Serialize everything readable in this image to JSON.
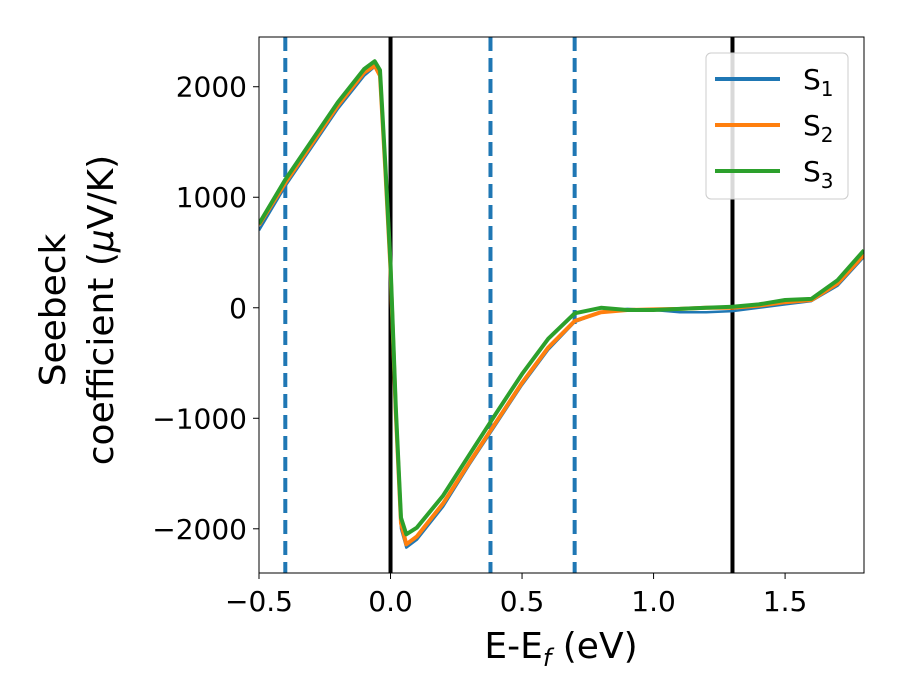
{
  "chart_data": {
    "type": "line",
    "xlabel": "E-E",
    "xlabel_sub": "f",
    "xlabel_unit": " (eV)",
    "ylabel_line1": "Seebeck",
    "ylabel_line2": "coefficient  (",
    "ylabel_mu": "μ",
    "ylabel_unit": "V/K)",
    "xlim": [
      -0.5,
      1.8
    ],
    "ylim": [
      -2400,
      2450
    ],
    "x_ticks": [
      -0.5,
      0.0,
      0.5,
      1.0,
      1.5
    ],
    "x_tick_labels": [
      "−0.5",
      "0.0",
      "0.5",
      "1.0",
      "1.5"
    ],
    "y_ticks": [
      -2000,
      -1000,
      0,
      1000,
      2000
    ],
    "y_tick_labels": [
      "−2000",
      "−1000",
      "0",
      "1000",
      "2000"
    ],
    "grid": false,
    "legend_position": "top-right",
    "vertical_lines": [
      {
        "x": -0.4,
        "style": "dashed",
        "color": "#1f77b4"
      },
      {
        "x": 0.0,
        "style": "solid",
        "color": "#000000"
      },
      {
        "x": 0.38,
        "style": "dashed",
        "color": "#1f77b4"
      },
      {
        "x": 0.7,
        "style": "dashed",
        "color": "#1f77b4"
      },
      {
        "x": 1.3,
        "style": "solid",
        "color": "#000000"
      }
    ],
    "series": [
      {
        "name": "S",
        "sub": "1",
        "color": "#1f77b4",
        "points": [
          [
            -0.5,
            700
          ],
          [
            -0.4,
            1100
          ],
          [
            -0.3,
            1450
          ],
          [
            -0.2,
            1800
          ],
          [
            -0.1,
            2100
          ],
          [
            -0.06,
            2180
          ],
          [
            -0.04,
            2100
          ],
          [
            -0.02,
            1200
          ],
          [
            0.0,
            300
          ],
          [
            0.02,
            -1000
          ],
          [
            0.04,
            -2000
          ],
          [
            0.06,
            -2170
          ],
          [
            0.1,
            -2100
          ],
          [
            0.2,
            -1800
          ],
          [
            0.3,
            -1420
          ],
          [
            0.4,
            -1060
          ],
          [
            0.5,
            -700
          ],
          [
            0.6,
            -380
          ],
          [
            0.7,
            -130
          ],
          [
            0.8,
            -40
          ],
          [
            0.9,
            -10
          ],
          [
            1.0,
            -20
          ],
          [
            1.1,
            -40
          ],
          [
            1.2,
            -40
          ],
          [
            1.3,
            -30
          ],
          [
            1.4,
            0
          ],
          [
            1.5,
            30
          ],
          [
            1.6,
            60
          ],
          [
            1.7,
            200
          ],
          [
            1.8,
            460
          ]
        ]
      },
      {
        "name": "S",
        "sub": "2",
        "color": "#ff7f0e",
        "points": [
          [
            -0.5,
            750
          ],
          [
            -0.4,
            1130
          ],
          [
            -0.3,
            1480
          ],
          [
            -0.2,
            1830
          ],
          [
            -0.1,
            2130
          ],
          [
            -0.06,
            2190
          ],
          [
            -0.04,
            2100
          ],
          [
            -0.02,
            1250
          ],
          [
            0.0,
            350
          ],
          [
            0.02,
            -950
          ],
          [
            0.04,
            -1950
          ],
          [
            0.06,
            -2140
          ],
          [
            0.1,
            -2070
          ],
          [
            0.2,
            -1770
          ],
          [
            0.3,
            -1400
          ],
          [
            0.4,
            -1040
          ],
          [
            0.5,
            -680
          ],
          [
            0.6,
            -360
          ],
          [
            0.7,
            -120
          ],
          [
            0.8,
            -40
          ],
          [
            0.9,
            -20
          ],
          [
            1.0,
            -15
          ],
          [
            1.1,
            -10
          ],
          [
            1.2,
            0
          ],
          [
            1.3,
            0
          ],
          [
            1.4,
            20
          ],
          [
            1.5,
            50
          ],
          [
            1.6,
            70
          ],
          [
            1.7,
            220
          ],
          [
            1.8,
            480
          ]
        ]
      },
      {
        "name": "S",
        "sub": "3",
        "color": "#2ca02c",
        "points": [
          [
            -0.5,
            760
          ],
          [
            -0.4,
            1160
          ],
          [
            -0.3,
            1510
          ],
          [
            -0.2,
            1860
          ],
          [
            -0.1,
            2160
          ],
          [
            -0.06,
            2230
          ],
          [
            -0.04,
            2150
          ],
          [
            -0.02,
            1300
          ],
          [
            0.0,
            400
          ],
          [
            0.02,
            -900
          ],
          [
            0.04,
            -1900
          ],
          [
            0.06,
            -2050
          ],
          [
            0.1,
            -1990
          ],
          [
            0.2,
            -1700
          ],
          [
            0.3,
            -1330
          ],
          [
            0.4,
            -960
          ],
          [
            0.5,
            -600
          ],
          [
            0.6,
            -280
          ],
          [
            0.7,
            -50
          ],
          [
            0.8,
            0
          ],
          [
            0.9,
            -20
          ],
          [
            1.0,
            -20
          ],
          [
            1.1,
            -10
          ],
          [
            1.2,
            0
          ],
          [
            1.3,
            10
          ],
          [
            1.4,
            30
          ],
          [
            1.5,
            70
          ],
          [
            1.6,
            80
          ],
          [
            1.7,
            250
          ],
          [
            1.8,
            520
          ]
        ]
      }
    ]
  }
}
